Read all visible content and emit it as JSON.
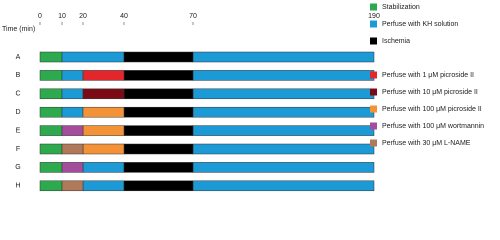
{
  "chart_data": {
    "type": "timeline",
    "x_label": "Time (min)",
    "xticks": [
      0,
      10,
      20,
      40,
      70,
      190
    ],
    "categories": [
      "A",
      "B",
      "C",
      "D",
      "E",
      "F",
      "G",
      "H"
    ],
    "series": [
      {
        "name": "Stabilization",
        "color": "#2eaa4e",
        "values": [
          [
            [
              0,
              10
            ]
          ],
          [
            [
              0,
              10
            ]
          ],
          [
            [
              0,
              10
            ]
          ],
          [
            [
              0,
              10
            ]
          ],
          [
            [
              0,
              10
            ]
          ],
          [
            [
              0,
              10
            ]
          ],
          [
            [
              0,
              10
            ]
          ],
          [
            [
              0,
              10
            ]
          ]
        ]
      },
      {
        "name": "Perfuse with KH solution",
        "color": "#1b9ad6",
        "values": [
          [
            [
              10,
              40
            ],
            [
              70,
              190
            ]
          ],
          [
            [
              10,
              20
            ],
            [
              70,
              190
            ]
          ],
          [
            [
              10,
              20
            ],
            [
              70,
              190
            ]
          ],
          [
            [
              10,
              20
            ],
            [
              70,
              190
            ]
          ],
          [
            [
              70,
              190
            ]
          ],
          [
            [
              70,
              190
            ]
          ],
          [
            [
              20,
              40
            ],
            [
              70,
              190
            ]
          ],
          [
            [
              20,
              40
            ],
            [
              70,
              190
            ]
          ]
        ]
      },
      {
        "name": "Ischemia",
        "color": "#000000",
        "values": [
          [
            [
              40,
              70
            ]
          ],
          [
            [
              40,
              70
            ]
          ],
          [
            [
              40,
              70
            ]
          ],
          [
            [
              40,
              70
            ]
          ],
          [
            [
              40,
              70
            ]
          ],
          [
            [
              40,
              70
            ]
          ],
          [
            [
              40,
              70
            ]
          ],
          [
            [
              40,
              70
            ]
          ]
        ]
      },
      {
        "name": "Perfuse with 1 μM picroside II",
        "color": "#e3262b",
        "values": [
          [],
          [
            [
              20,
              40
            ]
          ],
          [],
          [],
          [],
          [],
          [],
          []
        ]
      },
      {
        "name": "Perfuse with 10 μM picroside II",
        "color": "#7a0b14",
        "values": [
          [],
          [],
          [
            [
              20,
              40
            ]
          ],
          [],
          [],
          [],
          [],
          []
        ]
      },
      {
        "name": "Perfuse with 100 μM picroside II",
        "color": "#f39237",
        "values": [
          [],
          [],
          [],
          [
            [
              20,
              40
            ]
          ],
          [
            [
              20,
              40
            ]
          ],
          [
            [
              20,
              40
            ]
          ],
          [],
          []
        ]
      },
      {
        "name": "Perfuse with 100 μM wortmannin",
        "color": "#a34d9c",
        "values": [
          [],
          [],
          [],
          [],
          [
            [
              10,
              20
            ]
          ],
          [],
          [
            [
              10,
              20
            ]
          ],
          []
        ]
      },
      {
        "name": "Perfuse with 30 μM L-NAME",
        "color": "#b07a5a",
        "values": [
          [],
          [],
          [],
          [],
          [],
          [
            [
              10,
              20
            ]
          ],
          [],
          [
            [
              10,
              20
            ]
          ]
        ]
      }
    ]
  }
}
